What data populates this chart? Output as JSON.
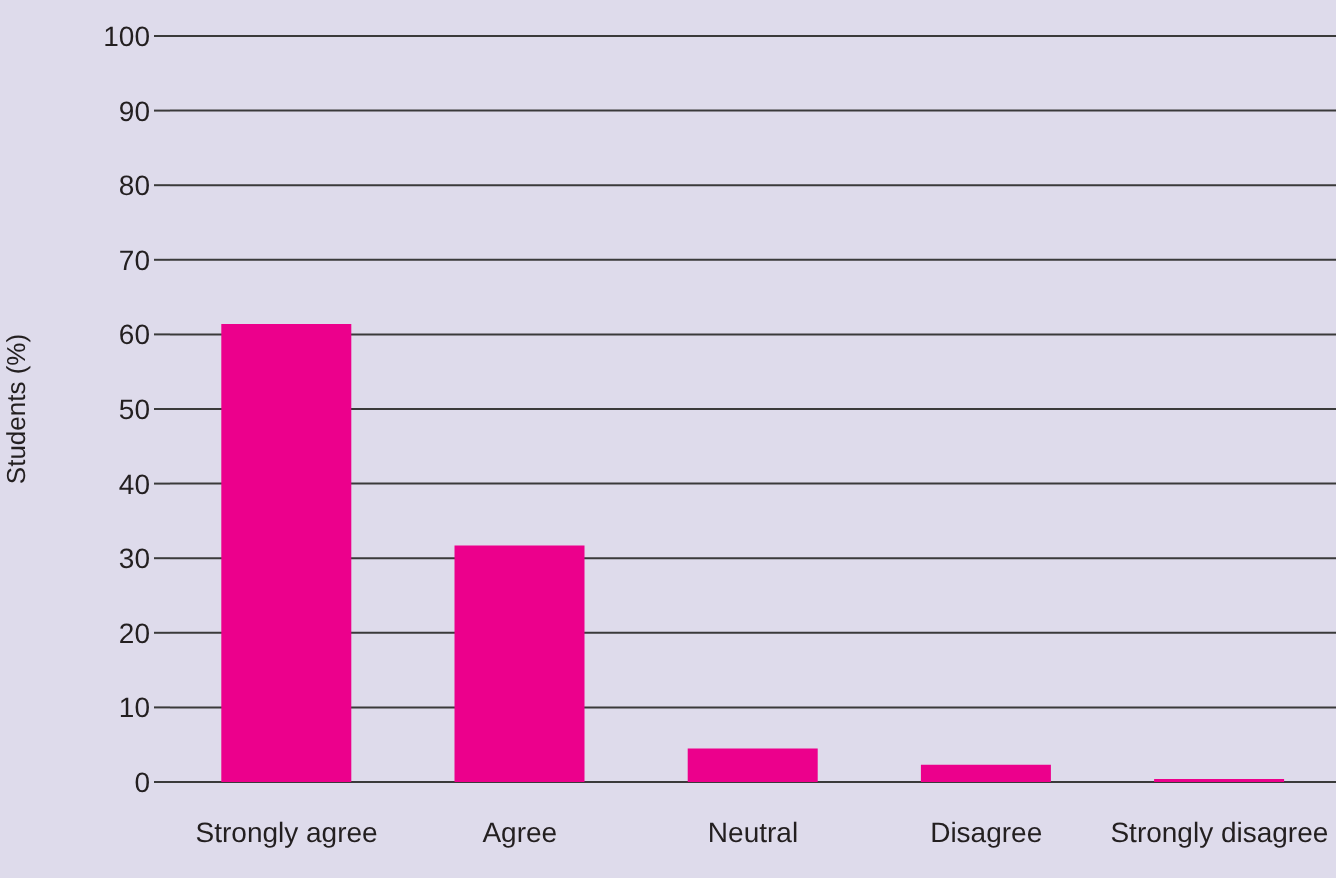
{
  "chart_data": {
    "type": "bar",
    "ylabel": "Students (%)",
    "categories": [
      "Strongly agree",
      "Agree",
      "Neutral",
      "Disagree",
      "Strongly disagree"
    ],
    "values": [
      61.4,
      31.7,
      4.5,
      2.3,
      0.4
    ],
    "color": "#ec008c",
    "ylim": [
      0,
      100
    ],
    "yticks": [
      0,
      10,
      20,
      30,
      40,
      50,
      60,
      70,
      80,
      90,
      100
    ],
    "grid": "y"
  }
}
